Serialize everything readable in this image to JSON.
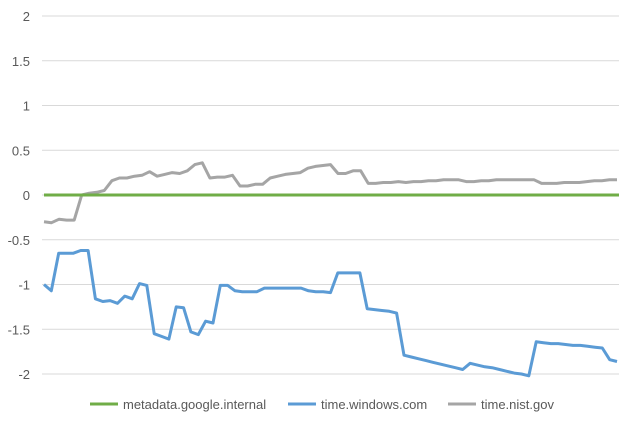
{
  "chart_data": {
    "type": "line",
    "title": "",
    "xlabel": "",
    "ylabel": "",
    "ylim": [
      -2,
      2
    ],
    "yticks": [
      2,
      1.5,
      1,
      0.5,
      0,
      -0.5,
      -1,
      -1.5,
      -2
    ],
    "ytick_labels": [
      "2",
      "1.5",
      "1",
      "0.5",
      "0",
      "-0.5",
      "-1",
      "-1.5",
      "-2"
    ],
    "grid": "horizontal",
    "legend_position": "bottom",
    "series": [
      {
        "name": "metadata.google.internal",
        "color": "#70ad47",
        "values": [
          0,
          0,
          0,
          0,
          0,
          0,
          0,
          0,
          0,
          0,
          0,
          0,
          0,
          0,
          0,
          0,
          0,
          0,
          0,
          0,
          0,
          0,
          0,
          0,
          0,
          0,
          0,
          0,
          0,
          0,
          0,
          0,
          0,
          0,
          0,
          0,
          0,
          0,
          0,
          0,
          0,
          0,
          0,
          0,
          0,
          0,
          0,
          0,
          0,
          0,
          0,
          0,
          0,
          0,
          0,
          0,
          0,
          0,
          0,
          0,
          0,
          0,
          0,
          0,
          0,
          0,
          0,
          0,
          0,
          0,
          0,
          0,
          0,
          0,
          0,
          0,
          0,
          0,
          0,
          0
        ]
      },
      {
        "name": "time.windows.com",
        "color": "#5b9bd5",
        "values": [
          -1.0,
          -1.07,
          -0.65,
          -0.65,
          -0.65,
          -0.62,
          -0.62,
          -1.16,
          -1.19,
          -1.18,
          -1.21,
          -1.13,
          -1.16,
          -0.99,
          -1.01,
          -1.55,
          -1.58,
          -1.61,
          -1.25,
          -1.26,
          -1.53,
          -1.56,
          -1.41,
          -1.43,
          -1.01,
          -1.01,
          -1.07,
          -1.08,
          -1.08,
          -1.08,
          -1.04,
          -1.04,
          -1.04,
          -1.04,
          -1.04,
          -1.04,
          -1.07,
          -1.08,
          -1.08,
          -1.09,
          -0.87,
          -0.87,
          -0.87,
          -0.87,
          -1.27,
          -1.28,
          -1.29,
          -1.3,
          -1.32,
          -1.79,
          -1.81,
          -1.83,
          -1.85,
          -1.87,
          -1.89,
          -1.91,
          -1.93,
          -1.95,
          -1.88,
          -1.9,
          -1.92,
          -1.93,
          -1.95,
          -1.97,
          -1.99,
          -2.0,
          -2.02,
          -1.64,
          -1.65,
          -1.66,
          -1.66,
          -1.67,
          -1.68,
          -1.68,
          -1.69,
          -1.7,
          -1.71,
          -1.84,
          -1.86
        ]
      },
      {
        "name": "time.nist.gov",
        "color": "#a5a5a5",
        "values": [
          -0.3,
          -0.31,
          -0.27,
          -0.28,
          -0.28,
          0.0,
          0.02,
          0.03,
          0.05,
          0.16,
          0.19,
          0.19,
          0.21,
          0.22,
          0.26,
          0.21,
          0.23,
          0.25,
          0.24,
          0.27,
          0.34,
          0.36,
          0.19,
          0.2,
          0.2,
          0.22,
          0.1,
          0.1,
          0.12,
          0.12,
          0.19,
          0.21,
          0.23,
          0.24,
          0.25,
          0.3,
          0.32,
          0.33,
          0.34,
          0.24,
          0.24,
          0.27,
          0.27,
          0.13,
          0.13,
          0.14,
          0.14,
          0.15,
          0.14,
          0.15,
          0.15,
          0.16,
          0.16,
          0.17,
          0.17,
          0.17,
          0.15,
          0.15,
          0.16,
          0.16,
          0.17,
          0.17,
          0.17,
          0.17,
          0.17,
          0.17,
          0.13,
          0.13,
          0.13,
          0.14,
          0.14,
          0.14,
          0.15,
          0.16,
          0.16,
          0.17,
          0.17
        ]
      }
    ]
  }
}
